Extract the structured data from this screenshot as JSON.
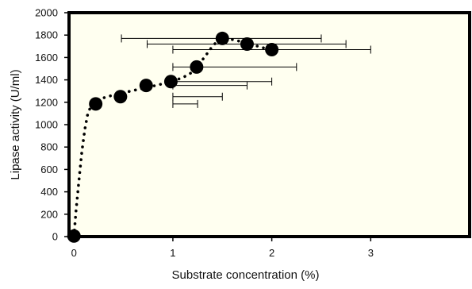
{
  "chart_data": {
    "type": "scatter",
    "xlabel": "Substrate concentration (%)",
    "ylabel": "Lipase activity (U/ml)",
    "xlim": [
      -0.05,
      4
    ],
    "ylim": [
      0,
      2000
    ],
    "x_ticks": [
      0,
      1,
      2,
      3
    ],
    "y_ticks": [
      0,
      200,
      400,
      600,
      800,
      1000,
      1200,
      1400,
      1600,
      1800,
      2000
    ],
    "points": [
      {
        "x": 0.0,
        "y": 5,
        "xerr_low": 0.0,
        "xerr_high": 0.0
      },
      {
        "x": 0.22,
        "y": 1185,
        "xerr_low": 1.0,
        "xerr_high": 1.25
      },
      {
        "x": 0.47,
        "y": 1250,
        "xerr_low": 1.0,
        "xerr_high": 1.5
      },
      {
        "x": 0.73,
        "y": 1350,
        "xerr_low": 1.0,
        "xerr_high": 1.75
      },
      {
        "x": 0.98,
        "y": 1385,
        "xerr_low": 1.0,
        "xerr_high": 2.0
      },
      {
        "x": 1.24,
        "y": 1515,
        "xerr_low": 1.0,
        "xerr_high": 2.25
      },
      {
        "x": 1.5,
        "y": 1770,
        "xerr_low": 0.48,
        "xerr_high": 2.5
      },
      {
        "x": 1.75,
        "y": 1720,
        "xerr_low": 0.74,
        "xerr_high": 2.75
      },
      {
        "x": 2.0,
        "y": 1670,
        "xerr_low": 1.0,
        "xerr_high": 3.0
      }
    ],
    "trend_line": {
      "style": "dotted",
      "x": [
        0,
        0.02,
        0.05,
        0.08,
        0.11,
        0.14,
        0.17,
        0.2,
        0.25,
        0.3,
        0.4,
        0.5,
        0.6,
        0.7,
        0.8,
        0.9,
        1.0,
        1.1,
        1.2,
        1.25,
        1.3,
        1.35,
        1.4,
        1.45,
        1.5,
        1.6,
        1.7,
        1.8,
        1.9,
        2.0
      ],
      "y": [
        0,
        220,
        500,
        760,
        960,
        1100,
        1160,
        1190,
        1225,
        1240,
        1265,
        1285,
        1305,
        1325,
        1345,
        1365,
        1390,
        1420,
        1470,
        1520,
        1580,
        1640,
        1700,
        1745,
        1770,
        1760,
        1740,
        1715,
        1690,
        1665
      ]
    },
    "grid": false
  }
}
